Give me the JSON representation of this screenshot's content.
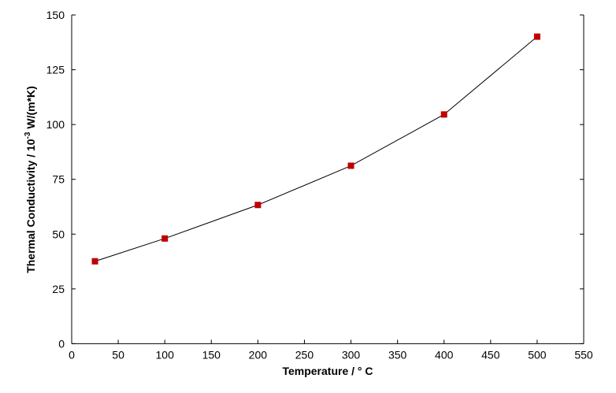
{
  "chart_data": {
    "type": "line",
    "title": "",
    "xlabel": "Temperature / ° C",
    "ylabel_main": "Thermal Conductivity / 10",
    "ylabel_sup": "-3",
    "ylabel_unit": " W/(m*K)",
    "xlim": [
      0,
      550
    ],
    "ylim": [
      0,
      150
    ],
    "xticks": [
      0,
      50,
      100,
      150,
      200,
      250,
      300,
      350,
      400,
      450,
      500,
      550
    ],
    "yticks": [
      0,
      25,
      50,
      75,
      100,
      125,
      150
    ],
    "grid": false,
    "series": [
      {
        "x": [
          25,
          100,
          200,
          300,
          400,
          500
        ],
        "y": [
          37.6,
          48.0,
          63.3,
          81.2,
          104.6,
          140.1
        ],
        "marker": "square",
        "marker_color": "#c00000",
        "line_color": "#000000"
      }
    ]
  }
}
